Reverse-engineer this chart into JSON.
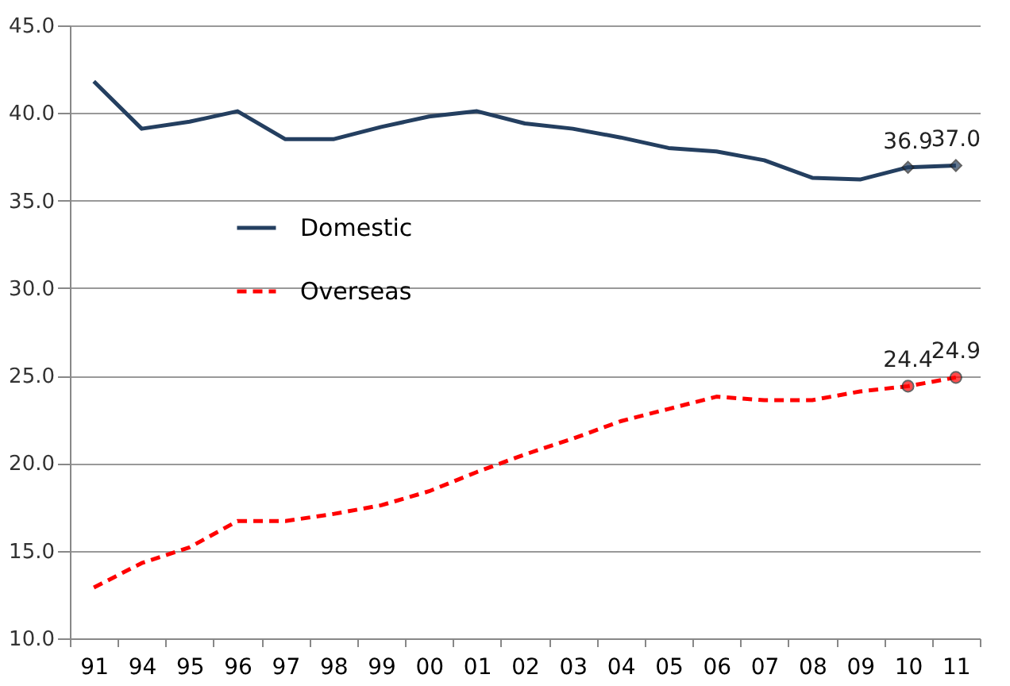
{
  "chart_data": {
    "type": "line",
    "categories": [
      "91",
      "94",
      "95",
      "96",
      "97",
      "98",
      "99",
      "00",
      "01",
      "02",
      "03",
      "04",
      "05",
      "06",
      "07",
      "08",
      "09",
      "10",
      "11"
    ],
    "series": [
      {
        "name": "Domestic",
        "color": "#243f60",
        "line_style": "solid",
        "values": [
          41.8,
          39.1,
          39.5,
          40.1,
          38.5,
          38.5,
          39.2,
          39.8,
          40.1,
          39.4,
          39.1,
          38.6,
          38.0,
          37.8,
          37.3,
          36.3,
          36.2,
          36.9,
          37.0
        ],
        "value_labels": [
          null,
          null,
          null,
          null,
          null,
          null,
          null,
          null,
          null,
          null,
          null,
          null,
          null,
          null,
          null,
          null,
          null,
          "36.9",
          "37.0"
        ]
      },
      {
        "name": "Overseas",
        "color": "#ff0000",
        "line_style": "dashed",
        "values": [
          12.9,
          14.3,
          15.2,
          16.7,
          16.7,
          17.1,
          17.6,
          18.4,
          19.5,
          20.5,
          21.4,
          22.4,
          23.1,
          23.8,
          23.6,
          23.6,
          24.1,
          24.4,
          24.9
        ],
        "value_labels": [
          null,
          null,
          null,
          null,
          null,
          null,
          null,
          null,
          null,
          null,
          null,
          null,
          null,
          null,
          null,
          null,
          null,
          "24.4",
          "24.9"
        ]
      }
    ],
    "ylim": [
      10,
      45
    ],
    "yticks": [
      {
        "value": 10,
        "label": "10.0"
      },
      {
        "value": 15,
        "label": "15.0"
      },
      {
        "value": 20,
        "label": "20.0"
      },
      {
        "value": 25,
        "label": "25.0"
      },
      {
        "value": 30,
        "label": "30.0"
      },
      {
        "value": 35,
        "label": "35.0"
      },
      {
        "value": 40,
        "label": "40.0"
      },
      {
        "value": 45,
        "label": "45.0"
      }
    ],
    "grid": "y",
    "legend": "left"
  }
}
